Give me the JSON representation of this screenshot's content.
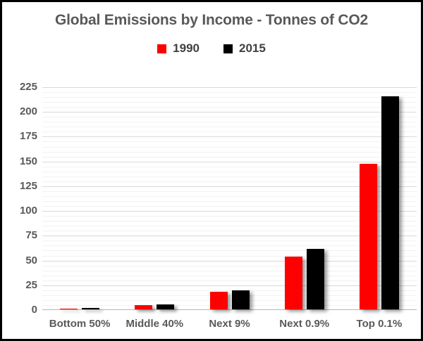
{
  "chart_data": {
    "type": "bar",
    "title": "Global Emissions by Income - Tonnes of CO2",
    "categories": [
      "Bottom 50%",
      "Middle 40%",
      "Next 9%",
      "Next 0.9%",
      "Top 0.1%"
    ],
    "series": [
      {
        "name": "1990",
        "color": "#ff0000",
        "values": [
          0.7,
          4.5,
          18,
          53,
          147
        ]
      },
      {
        "name": "2015",
        "color": "#000000",
        "values": [
          1.4,
          5,
          19,
          61,
          215
        ]
      }
    ],
    "xlabel": "",
    "ylabel": "",
    "ylim": [
      0,
      225
    ],
    "yticks": [
      0,
      25,
      50,
      75,
      100,
      125,
      150,
      175,
      200,
      225
    ],
    "ytick_step": 25,
    "minor_grid_step": 5,
    "grid": true,
    "legend_position": "top",
    "colors": {
      "title_text": "#595959",
      "axis_text": "#595959",
      "legend_text": "#404040",
      "major_gridline": "#d9d9d9",
      "minor_gridline": "#f2f2f2",
      "frame_border": "#000000",
      "background": "#ffffff"
    }
  }
}
